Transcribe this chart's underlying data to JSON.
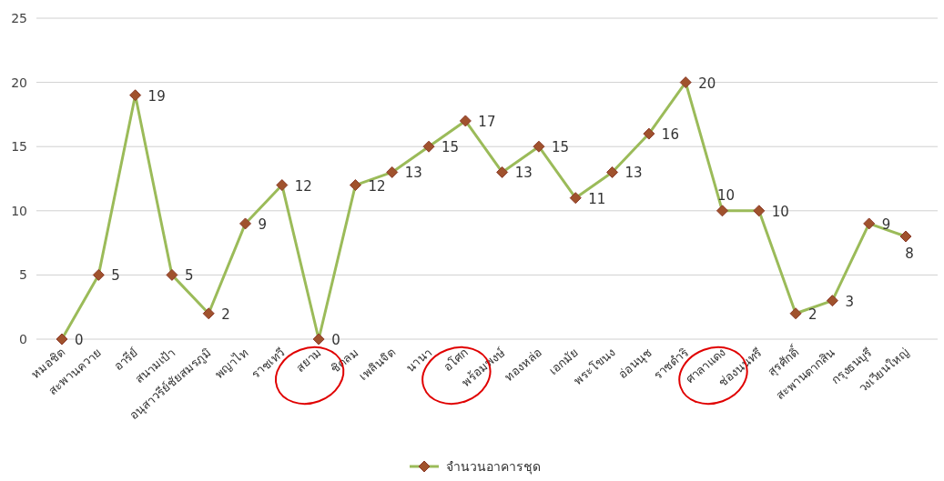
{
  "chart_data": {
    "type": "line",
    "categories": [
      "หมอชิต",
      "สะพานควาย",
      "อารีย์",
      "สนามเป้า",
      "อนุสาวรีย์ชัยสมรภูมิ",
      "พญาไท",
      "ราชเทวี",
      "สยาม",
      "ชิดลม",
      "เพลินจิต",
      "นานา",
      "อโศก",
      "พร้อมพงษ์",
      "ทองหล่อ",
      "เอกมัย",
      "พระโขนง",
      "อ่อนนุช",
      "ราชดำริ",
      "ศาลาแดง",
      "ช่องนนทรี",
      "สุรศักดิ์",
      "สะพานตากสิน",
      "กรุงธนบุรี",
      "วงเวียนใหญ่"
    ],
    "series": [
      {
        "name": "จำนวนอาคารชุด",
        "color": "#9bbb59",
        "values": [
          0,
          5,
          19,
          5,
          2,
          9,
          12,
          0,
          12,
          13,
          15,
          17,
          13,
          15,
          11,
          13,
          16,
          20,
          10,
          10,
          2,
          3,
          9,
          8
        ]
      }
    ],
    "ylim": [
      0,
      25
    ],
    "yticks": [
      0,
      5,
      10,
      15,
      20,
      25
    ],
    "grid": "y",
    "legend": "bottom",
    "marker": "diamond",
    "line_style": "solid",
    "data_labels": true
  }
}
